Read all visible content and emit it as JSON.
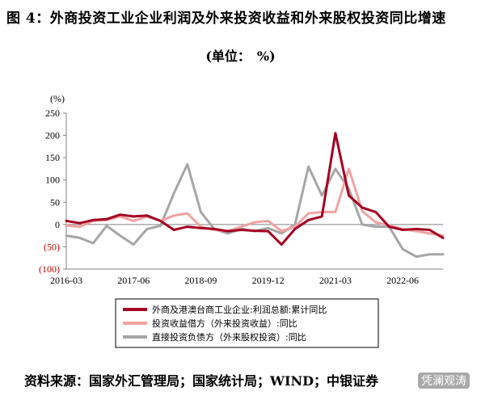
{
  "title": "图 4：外商投资工业企业利润及外来投资收益和外来股权投资同比增速",
  "unit": "(单位：　%)",
  "source": "资料来源：国家外汇管理局；国家统计局；WIND；中银证券",
  "watermark": "凭澜观涛",
  "colors": {
    "series1": "#a50021",
    "series2": "#f2a2a2",
    "series3": "#a6a6a6"
  },
  "chart_data": {
    "type": "line",
    "ylabel": "(%)",
    "ylim": [
      -100,
      250
    ],
    "yticks": [
      -100,
      -50,
      0,
      50,
      100,
      150,
      200,
      250
    ],
    "ytick_labels": [
      "(100)",
      "(50)",
      "0",
      "50",
      "100",
      "150",
      "200",
      "250"
    ],
    "xticks": [
      "2016-03",
      "2017-06",
      "2018-09",
      "2019-12",
      "2021-03",
      "2022-06"
    ],
    "x": [
      "2016-03",
      "2016-06",
      "2016-09",
      "2016-12",
      "2017-03",
      "2017-06",
      "2017-09",
      "2017-12",
      "2018-03",
      "2018-06",
      "2018-09",
      "2018-12",
      "2019-03",
      "2019-06",
      "2019-09",
      "2019-12",
      "2020-03",
      "2020-06",
      "2020-09",
      "2020-12",
      "2021-03",
      "2021-06",
      "2021-09",
      "2021-12",
      "2022-03",
      "2022-06",
      "2022-09",
      "2022-12",
      "2023-03"
    ],
    "series": [
      {
        "name": "外商及港澳台商工业企业:利润总额:累计同比",
        "values": [
          8,
          3,
          10,
          12,
          22,
          18,
          20,
          8,
          -12,
          -5,
          -8,
          -10,
          -15,
          -12,
          -14,
          -15,
          -45,
          -10,
          10,
          18,
          205,
          65,
          38,
          28,
          -5,
          -12,
          -10,
          -12,
          -30
        ]
      },
      {
        "name": "投资收益借方（外来投资收益）:同比",
        "values": [
          -2,
          -5,
          8,
          10,
          18,
          8,
          18,
          8,
          20,
          25,
          -5,
          -12,
          -15,
          -5,
          5,
          8,
          -15,
          -5,
          25,
          28,
          28,
          125,
          30,
          5,
          -2,
          -10,
          -15,
          -20,
          -25
        ]
      },
      {
        "name": "直接投资负债方（外来股权投资）:同比",
        "values": [
          -25,
          -30,
          -42,
          -3,
          -25,
          -45,
          -10,
          -3,
          70,
          135,
          28,
          -10,
          -20,
          -10,
          -15,
          -8,
          -20,
          0,
          130,
          65,
          125,
          80,
          0,
          -5,
          -5,
          -55,
          -72,
          -67,
          -67
        ]
      }
    ]
  }
}
